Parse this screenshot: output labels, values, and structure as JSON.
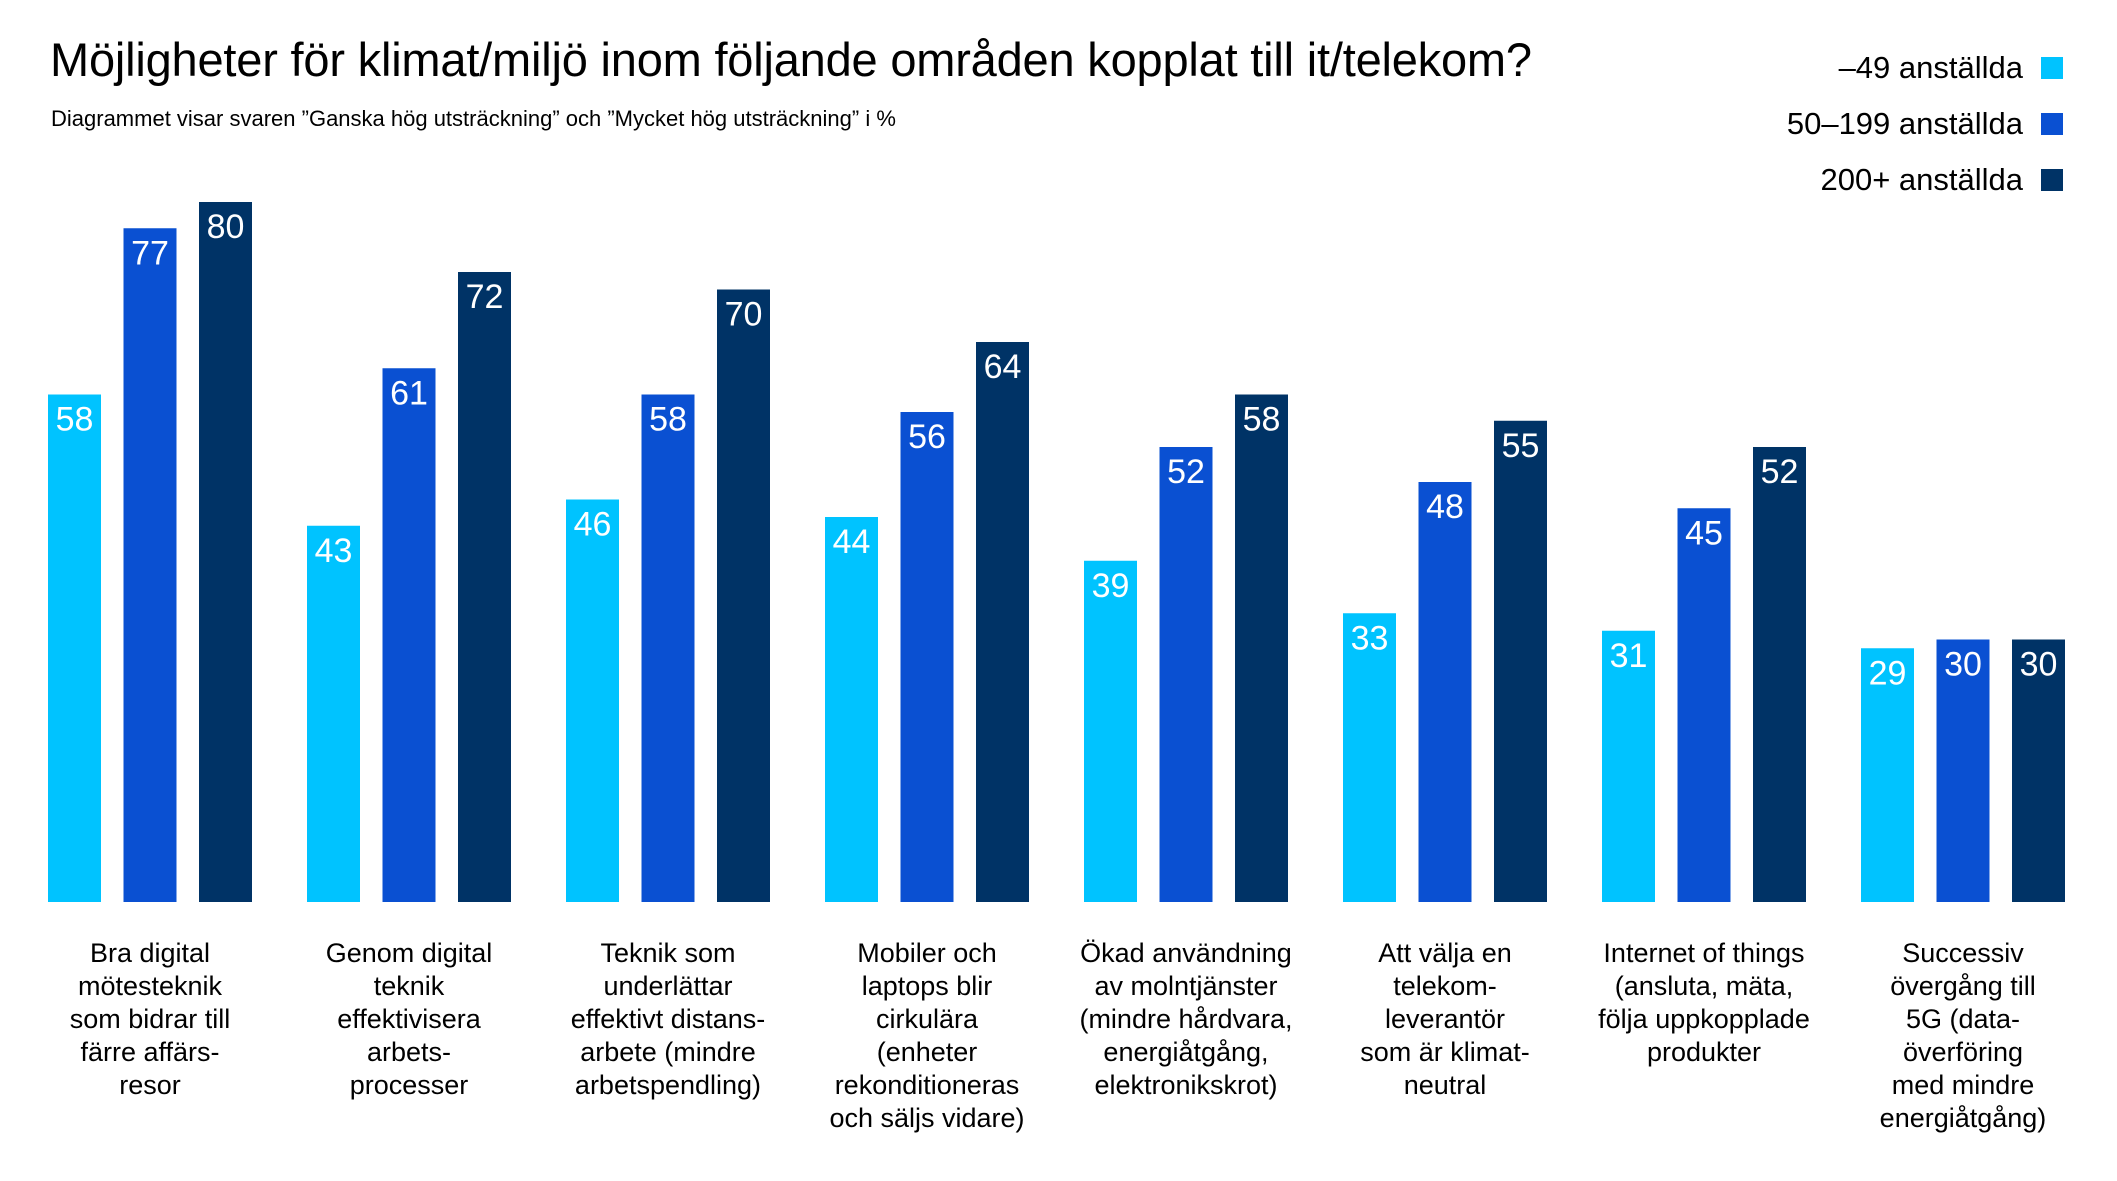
{
  "title": "Möjligheter för klimat/miljö inom följande områden kopplat till it/telekom?",
  "subtitle": "Diagrammet visar svaren ”Ganska hög utsträckning” och ”Mycket hög utsträckning” i %",
  "colors": {
    "series1": "#00c3ff",
    "series2": "#0a50d2",
    "series3": "#003366"
  },
  "chart_data": {
    "type": "bar",
    "categories": [
      [
        "Bra digital",
        "mötesteknik",
        "som bidrar till",
        "färre affärs-",
        "resor"
      ],
      [
        "Genom digital",
        "teknik",
        "effektivisera",
        "arbets-",
        "processer"
      ],
      [
        "Teknik som",
        "underlättar",
        "effektivt distans-",
        "arbete (mindre",
        "arbetspendling)"
      ],
      [
        "Mobiler och",
        "laptops blir",
        "cirkulära",
        "(enheter",
        "rekonditioneras",
        "och säljs vidare)"
      ],
      [
        "Ökad användning",
        "av molntjänster",
        "(mindre hårdvara,",
        "energiåtgång,",
        "elektronikskrot)"
      ],
      [
        "Att välja en",
        "telekom-",
        "leverantör",
        "som är klimat-",
        "neutral"
      ],
      [
        "Internet of things",
        "(ansluta, mäta,",
        "följa uppkopplade",
        "produkter"
      ],
      [
        "Successiv",
        "övergång till",
        "5G (data-",
        "överföring",
        "med mindre",
        "energiåtgång)"
      ]
    ],
    "series": [
      {
        "name": "–49 anställda",
        "values": [
          58,
          43,
          46,
          44,
          39,
          33,
          31,
          29
        ]
      },
      {
        "name": "50–199 anställda",
        "values": [
          77,
          61,
          58,
          56,
          52,
          48,
          45,
          30
        ]
      },
      {
        "name": "200+ anställda",
        "values": [
          80,
          72,
          70,
          64,
          58,
          55,
          52,
          30
        ]
      }
    ],
    "ylim": [
      0,
      100
    ],
    "grid": false,
    "legend": "top-right",
    "data_labels": "inside-top"
  }
}
